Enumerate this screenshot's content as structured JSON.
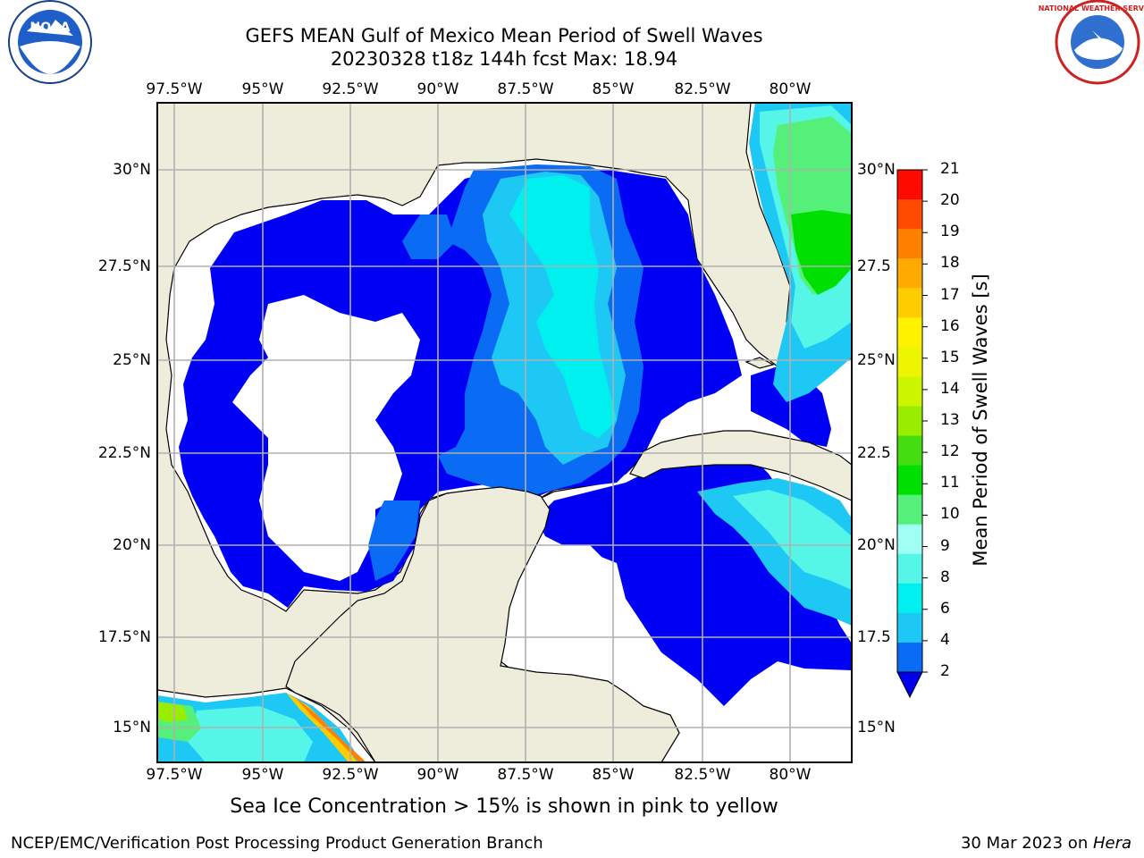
{
  "title_line1": "GEFS MEAN Gulf of Mexico Mean Period of Swell Waves",
  "title_line2": "20230328 t18z 144h fcst   Max: 18.94",
  "lon_labels": [
    "97.5°W",
    "95°W",
    "92.5°W",
    "90°W",
    "87.5°W",
    "85°W",
    "82.5°W",
    "80°W"
  ],
  "lat_labels_left": [
    "30°N",
    "27.5°N",
    "25°N",
    "22.5°N",
    "20°N",
    "17.5°N",
    "15°N"
  ],
  "lat_labels_right": [
    "30°N",
    "27.5",
    "25°N",
    "22.5",
    "20°N",
    "17.5",
    "15°N"
  ],
  "colorbar": {
    "title": "Mean Period of Swell Waves [s]",
    "ticks": [
      "2",
      "4",
      "6",
      "8",
      "9",
      "10",
      "11",
      "12",
      "13",
      "14",
      "15",
      "16",
      "17",
      "18",
      "19",
      "20",
      "21"
    ],
    "colors": [
      "#0a6cf5",
      "#1ec8f5",
      "#00f0f0",
      "#55f5e8",
      "#9ffff5",
      "#55f07a",
      "#00e000",
      "#44dd11",
      "#99ee00",
      "#ccf500",
      "#eef500",
      "#fff200",
      "#ffcc00",
      "#ffaa00",
      "#ff7f00",
      "#ff4a00",
      "#ff0a00"
    ],
    "extend_color": "#0000ee"
  },
  "colors": {
    "land": "#eeeddc",
    "ocean_shallow": "#0000f5",
    "ocean_mid": "#0a6cf5",
    "ocean_cyan": "#00f0f0"
  },
  "subcaption": "Sea Ice Concentration > 15% is shown in pink to yellow",
  "footer_left": "NCEP/EMC/Verification Post Processing Product Generation Branch",
  "footer_right_date": "30 Mar 2023 on ",
  "footer_right_host": "Hera",
  "logos": {
    "left": "NOAA",
    "right": "NATIONAL WEATHER SERVICE"
  }
}
